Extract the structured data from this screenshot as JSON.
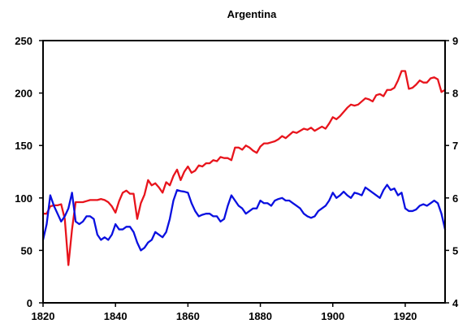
{
  "chart_data": {
    "type": "line",
    "title": "Argentina",
    "xlabel": "",
    "ylabel": "",
    "y2label": "",
    "xlim": [
      1820,
      1931
    ],
    "ylim": [
      0,
      250
    ],
    "y2lim": [
      4,
      9
    ],
    "x_ticks": [
      1820,
      1840,
      1860,
      1880,
      1900,
      1920
    ],
    "y_ticks": [
      0,
      50,
      100,
      150,
      200,
      250
    ],
    "y2_ticks": [
      4,
      5,
      6,
      7,
      8,
      9
    ],
    "grid": false,
    "legend": "none",
    "series": [
      {
        "axis": "left",
        "color": "#e8141c",
        "x": [
          1820,
          1821,
          1822,
          1823,
          1824,
          1825,
          1826,
          1827,
          1828,
          1829,
          1830,
          1831,
          1832,
          1833,
          1834,
          1835,
          1836,
          1837,
          1838,
          1839,
          1840,
          1841,
          1842,
          1843,
          1844,
          1845,
          1846,
          1847,
          1848,
          1849,
          1850,
          1851,
          1852,
          1853,
          1854,
          1855,
          1856,
          1857,
          1858,
          1859,
          1860,
          1861,
          1862,
          1863,
          1864,
          1865,
          1866,
          1867,
          1868,
          1869,
          1870,
          1871,
          1872,
          1873,
          1874,
          1875,
          1876,
          1877,
          1878,
          1879,
          1880,
          1881,
          1882,
          1883,
          1884,
          1885,
          1886,
          1887,
          1888,
          1889,
          1890,
          1891,
          1892,
          1893,
          1894,
          1895,
          1896,
          1897,
          1898,
          1899,
          1900,
          1901,
          1902,
          1903,
          1904,
          1905,
          1906,
          1907,
          1908,
          1909,
          1910,
          1911,
          1912,
          1913,
          1914,
          1915,
          1916,
          1917,
          1918,
          1919,
          1920,
          1921,
          1922,
          1923,
          1924,
          1925,
          1926,
          1927,
          1928,
          1929,
          1930,
          1931
        ],
        "values": [
          85,
          85,
          92,
          93,
          93,
          94,
          80,
          36,
          70,
          96,
          96,
          96,
          97,
          98,
          98,
          98,
          99,
          98,
          96,
          92,
          86,
          97,
          105,
          107,
          104,
          104,
          80,
          95,
          103,
          117,
          112,
          114,
          110,
          105,
          115,
          112,
          121,
          127,
          117,
          125,
          130,
          124,
          126,
          131,
          130,
          133,
          133,
          136,
          135,
          139,
          138,
          138,
          136,
          148,
          148,
          146,
          150,
          148,
          145,
          143,
          149,
          152,
          152,
          153,
          154,
          156,
          159,
          157,
          160,
          163,
          162,
          164,
          166,
          165,
          167,
          164,
          166,
          168,
          166,
          171,
          177,
          175,
          178,
          182,
          186,
          189,
          188,
          189,
          192,
          195,
          194,
          192,
          198,
          199,
          197,
          203,
          203,
          205,
          212,
          221,
          221,
          204,
          205,
          208,
          212,
          210,
          210,
          214,
          215,
          213,
          201,
          203
        ]
      },
      {
        "axis": "right",
        "color": "#0a10e0",
        "x": [
          1820,
          1821,
          1822,
          1823,
          1824,
          1825,
          1826,
          1827,
          1828,
          1829,
          1830,
          1831,
          1832,
          1833,
          1834,
          1835,
          1836,
          1837,
          1838,
          1839,
          1840,
          1841,
          1842,
          1843,
          1844,
          1845,
          1846,
          1847,
          1848,
          1849,
          1850,
          1851,
          1852,
          1853,
          1854,
          1855,
          1856,
          1857,
          1858,
          1859,
          1860,
          1861,
          1862,
          1863,
          1864,
          1865,
          1866,
          1867,
          1868,
          1869,
          1870,
          1871,
          1872,
          1873,
          1874,
          1875,
          1876,
          1877,
          1878,
          1879,
          1880,
          1881,
          1882,
          1883,
          1884,
          1885,
          1886,
          1887,
          1888,
          1889,
          1890,
          1891,
          1892,
          1893,
          1894,
          1895,
          1896,
          1897,
          1898,
          1899,
          1900,
          1901,
          1902,
          1903,
          1904,
          1905,
          1906,
          1907,
          1908,
          1909,
          1910,
          1911,
          1912,
          1913,
          1914,
          1915,
          1916,
          1917,
          1918,
          1919,
          1920,
          1921,
          1922,
          1923,
          1924,
          1925,
          1926,
          1927,
          1928,
          1929,
          1930,
          1931
        ],
        "values": [
          5.2,
          5.5,
          6.05,
          5.85,
          5.7,
          5.55,
          5.65,
          5.8,
          6.1,
          5.55,
          5.5,
          5.55,
          5.65,
          5.65,
          5.6,
          5.3,
          5.2,
          5.25,
          5.2,
          5.3,
          5.5,
          5.4,
          5.4,
          5.45,
          5.45,
          5.35,
          5.15,
          5.0,
          5.05,
          5.15,
          5.2,
          5.35,
          5.3,
          5.25,
          5.35,
          5.6,
          5.95,
          6.15,
          6.13,
          6.12,
          6.1,
          5.9,
          5.75,
          5.65,
          5.68,
          5.7,
          5.7,
          5.65,
          5.65,
          5.55,
          5.6,
          5.85,
          6.05,
          5.95,
          5.85,
          5.8,
          5.7,
          5.75,
          5.8,
          5.8,
          5.95,
          5.9,
          5.9,
          5.85,
          5.95,
          5.98,
          6.0,
          5.95,
          5.95,
          5.9,
          5.85,
          5.8,
          5.7,
          5.65,
          5.62,
          5.65,
          5.75,
          5.8,
          5.85,
          5.95,
          6.1,
          6.0,
          6.05,
          6.12,
          6.05,
          6.0,
          6.1,
          6.08,
          6.05,
          6.2,
          6.15,
          6.1,
          6.05,
          6.0,
          6.15,
          6.25,
          6.15,
          6.18,
          6.05,
          6.1,
          5.8,
          5.75,
          5.75,
          5.78,
          5.85,
          5.88,
          5.85,
          5.9,
          5.95,
          5.9,
          5.7,
          5.4
        ]
      }
    ]
  }
}
